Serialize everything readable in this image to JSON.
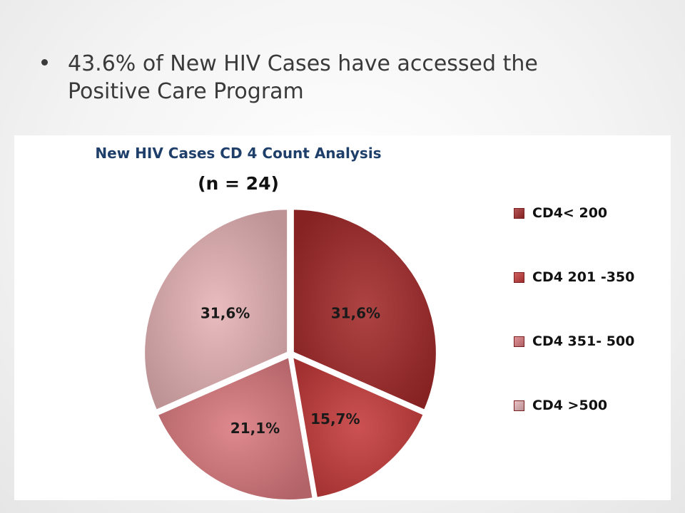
{
  "bullet": {
    "text": "43.6% of New HIV Cases have accessed the Positive Care Program"
  },
  "chart_data": {
    "type": "pie",
    "title": "New HIV Cases  CD 4 Count Analysis",
    "subtitle": "(n = 24)",
    "legend_position": "right",
    "slices": [
      {
        "name": "CD4< 200",
        "value": 31.6,
        "label": "31,6%",
        "color": "#a32a2a"
      },
      {
        "name": "CD4 201 -350",
        "value": 15.7,
        "label": "15,7%",
        "color": "#c53a3a"
      },
      {
        "name": "CD4 351- 500",
        "value": 21.1,
        "label": "21,1%",
        "color": "#d9797d"
      },
      {
        "name": "CD4 >500",
        "value": 31.6,
        "label": "31,6%",
        "color": "#e6b3b6"
      }
    ]
  }
}
